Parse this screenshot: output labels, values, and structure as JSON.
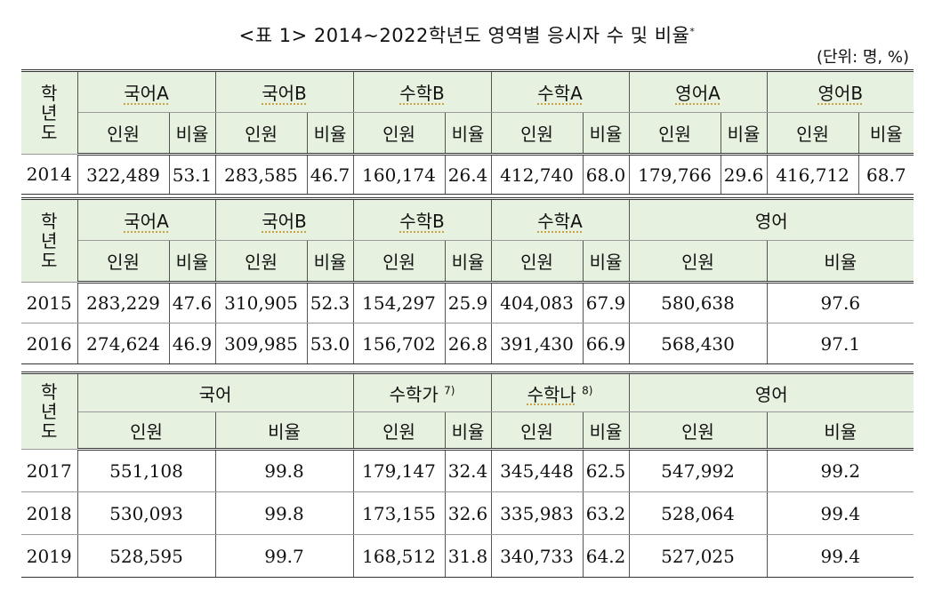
{
  "title": {
    "text": "<표 1> 2014~2022학년도 영역별 응시자 수 및 비율",
    "mark": "*"
  },
  "unit": "(단위: 명, %)",
  "year_label": [
    "학",
    "년",
    "도"
  ],
  "col_labels": {
    "people": "인원",
    "ratio": "비율"
  },
  "table1": {
    "subjects": [
      "국어A",
      "국어B",
      "수학B",
      "수학A",
      "영어A",
      "영어B"
    ],
    "rows": [
      {
        "year": "2014",
        "cells": [
          "322,489",
          "53.1",
          "283,585",
          "46.7",
          "160,174",
          "26.4",
          "412,740",
          "68.0",
          "179,766",
          "29.6",
          "416,712",
          "68.7"
        ]
      }
    ]
  },
  "table2": {
    "subjects": [
      "국어A",
      "국어B",
      "수학B",
      "수학A"
    ],
    "english": "영어",
    "rows": [
      {
        "year": "2015",
        "cells": [
          "283,229",
          "47.6",
          "310,905",
          "52.3",
          "154,297",
          "25.9",
          "404,083",
          "67.9",
          "580,638",
          "97.6"
        ]
      },
      {
        "year": "2016",
        "cells": [
          "274,624",
          "46.9",
          "309,985",
          "53.0",
          "156,702",
          "26.8",
          "391,430",
          "66.9",
          "568,430",
          "97.1"
        ]
      }
    ]
  },
  "table3": {
    "korean": "국어",
    "math_ga": "수학가",
    "math_ga_note": "7)",
    "math_na": "수학나",
    "math_na_note": "8)",
    "english": "영어",
    "rows": [
      {
        "year": "2017",
        "cells": [
          "551,108",
          "99.8",
          "179,147",
          "32.4",
          "345,448",
          "62.5",
          "547,992",
          "99.2"
        ]
      },
      {
        "year": "2018",
        "cells": [
          "530,093",
          "99.8",
          "173,155",
          "32.6",
          "335,983",
          "63.2",
          "528,064",
          "99.4"
        ]
      },
      {
        "year": "2019",
        "cells": [
          "528,595",
          "99.7",
          "168,512",
          "31.8",
          "340,733",
          "64.2",
          "527,025",
          "99.4"
        ]
      }
    ]
  }
}
